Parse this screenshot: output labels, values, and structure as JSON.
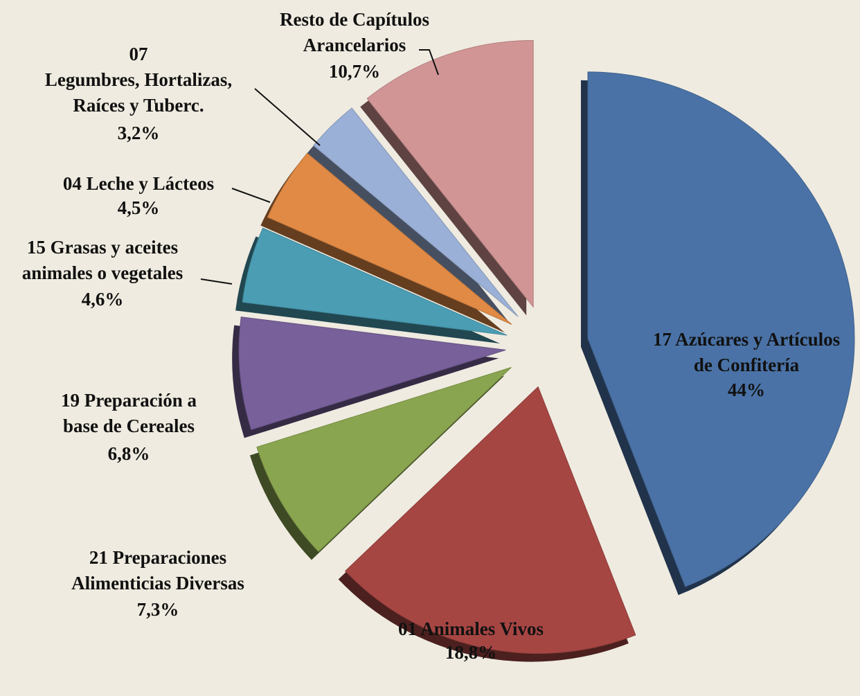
{
  "chart_data": {
    "type": "pie",
    "categories": [
      "17 Azúcares y Artículos\nde Confitería",
      "01 Animales Vivos",
      "21 Preparaciones\nAlimenticias Diversas",
      "19 Preparación a\nbase de Cereales",
      "15 Grasas y aceites\nanimales o vegetales",
      "04 Leche y Lácteos",
      "07\nLegumbres, Hortalizas,\nRaíces y Tuberc.",
      "Resto de Capítulos\nArancelarios"
    ],
    "values": [
      44,
      18.8,
      7.3,
      6.8,
      4.6,
      4.5,
      3.2,
      10.7
    ],
    "value_labels": [
      "44%",
      "18,8%",
      "7,3%",
      "6,8%",
      "4,6%",
      "4,5%",
      "3,2%",
      "10,7%"
    ],
    "colors": [
      "#4a72a6",
      "#a64643",
      "#8aa54f",
      "#78609a",
      "#4a9db3",
      "#e08a46",
      "#9bb0d6",
      "#d29595"
    ]
  }
}
